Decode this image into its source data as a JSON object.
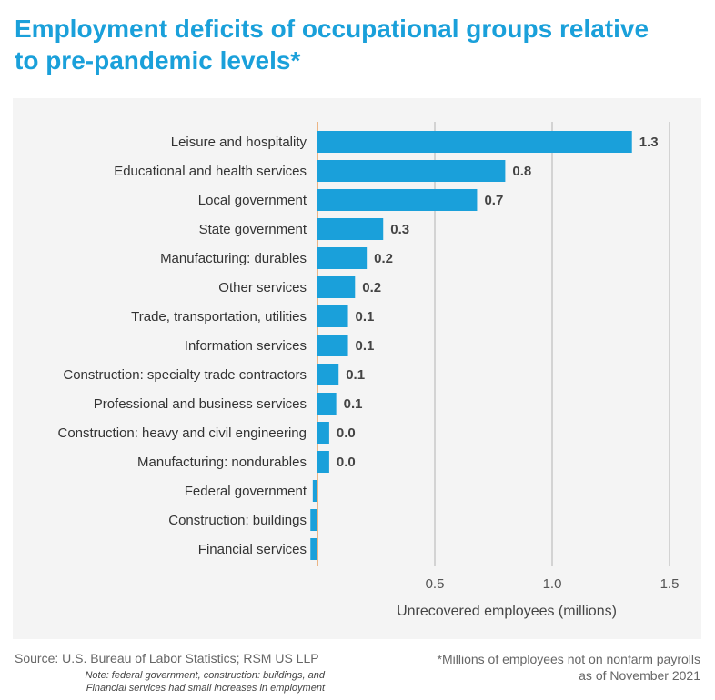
{
  "title": {
    "line1": "Employment deficits of occupational groups relative",
    "line2": "to pre-pandemic levels*"
  },
  "note": {
    "line1": "Note: federal government, construction: buildings, and",
    "line2": "Financial services had small increases in employment"
  },
  "source": "Source: U.S. Bureau of Labor Statistics; RSM US LLP",
  "footnote": {
    "line1": "*Millions of employees not on nonfarm payrolls",
    "line2": "as of November 2021"
  },
  "colors": {
    "bar": "#1aa0da",
    "zero_line": "#e8a060",
    "grid": "#c8c8c8",
    "panel": "#f4f4f4"
  },
  "chart_data": {
    "type": "bar",
    "orientation": "horizontal",
    "title": "Employment deficits of occupational groups relative to pre-pandemic levels*",
    "xlabel": "Unrecovered employees (millions)",
    "ylabel": "",
    "xlim": [
      0,
      1.5
    ],
    "xticks": [
      0.5,
      1.0,
      1.5
    ],
    "xtick_labels": [
      "0.5",
      "1.0",
      "1.5"
    ],
    "grid": true,
    "categories": [
      "Leisure and hospitality",
      "Educational and health services",
      "Local government",
      "State government",
      "Manufacturing: durables",
      "Other services",
      "Trade, transportation, utilities",
      "Information services",
      "Construction: specialty trade contractors",
      "Professional and business services",
      "Construction: heavy and civil engineering",
      "Manufacturing: nondurables",
      "Federal government",
      "Construction: buildings",
      "Financial services"
    ],
    "values": [
      1.34,
      0.8,
      0.68,
      0.28,
      0.21,
      0.16,
      0.13,
      0.13,
      0.09,
      0.08,
      0.05,
      0.05,
      -0.02,
      -0.03,
      -0.03
    ],
    "value_labels": [
      "1.3",
      "0.8",
      "0.7",
      "0.3",
      "0.2",
      "0.2",
      "0.1",
      "0.1",
      "0.1",
      "0.1",
      "0.0",
      "0.0",
      "",
      "",
      ""
    ]
  }
}
